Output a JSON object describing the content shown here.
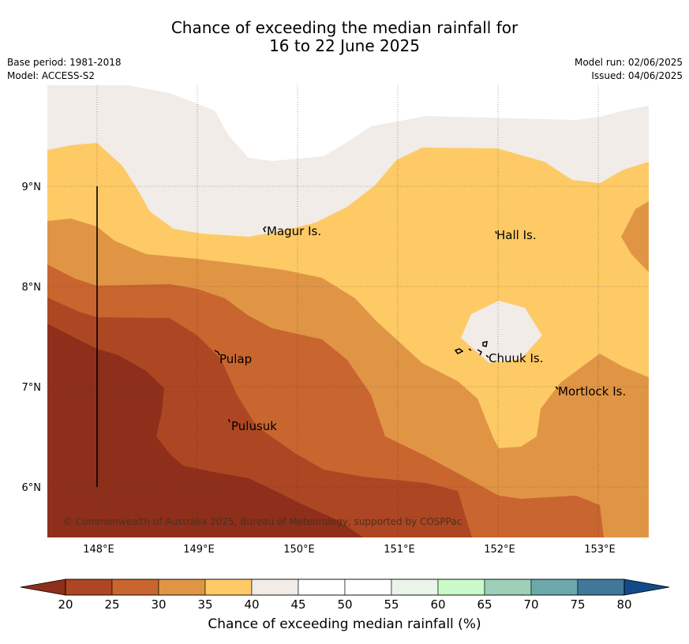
{
  "title_line1": "Chance of exceeding the median rainfall for",
  "title_line2": "16 to 22 June 2025",
  "meta_left": [
    "Base period: 1981-2018",
    "Model: ACCESS-S2"
  ],
  "meta_right": [
    "Model run: 02/06/2025",
    "Issued: 04/06/2025"
  ],
  "map": {
    "lon_range": [
      147.5,
      153.5
    ],
    "lat_range": [
      5.5,
      10.0
    ],
    "x_ticks": [
      "148°E",
      "149°E",
      "150°E",
      "151°E",
      "152°E",
      "153°E"
    ],
    "y_ticks": [
      "9°N",
      "8°N",
      "7°N",
      "6°N"
    ],
    "x_tick_values": [
      148,
      149,
      150,
      151,
      152,
      153
    ],
    "y_tick_values": [
      9,
      8,
      7,
      6
    ],
    "grid": true,
    "place_labels": [
      {
        "name": "Magur Is.",
        "lon": 149.7,
        "lat": 8.55
      },
      {
        "name": "Hall Is.",
        "lon": 152.0,
        "lat": 8.5
      },
      {
        "name": "Pulap",
        "lon": 149.2,
        "lat": 7.25
      },
      {
        "name": "Chuuk Is.",
        "lon": 151.9,
        "lat": 7.27
      },
      {
        "name": "Mortlock Is.",
        "lon": 152.6,
        "lat": 6.95
      },
      {
        "name": "Pulusuk",
        "lon": 149.3,
        "lat": 6.6
      }
    ],
    "copyright": "© Commonwealth of Australia 2025, Bureau of Meteorology, supported by COSPPac"
  },
  "colorbar": {
    "title": "Chance of exceeding median rainfall (%)",
    "ticks": [
      "20",
      "25",
      "30",
      "35",
      "40",
      "45",
      "50",
      "55",
      "60",
      "65",
      "70",
      "75",
      "80"
    ],
    "colors": [
      "#AD4623",
      "#C9652F",
      "#E09545",
      "#FDCA65",
      "#F1ECE7",
      "#FFFFFF",
      "#FFFFFF",
      "#EBF4EA",
      "#C9FAC8",
      "#9ECFB8",
      "#6CA7A9",
      "#3F7899"
    ],
    "under_color": "#8E2F1B",
    "over_color": "#134B8A"
  }
}
